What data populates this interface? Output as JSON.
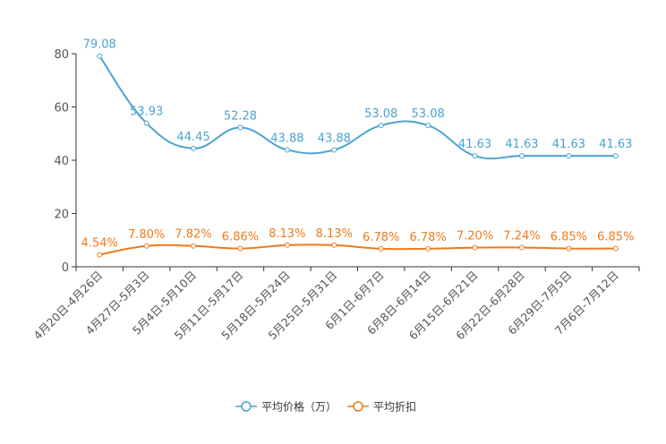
{
  "chart_data": {
    "type": "line",
    "categories": [
      "4月20日-4月26日",
      "4月27日-5月3日",
      "5月4日-5月10日",
      "5月11日-5月17日",
      "5月18日-5月24日",
      "5月25日-5月31日",
      "6月1日-6月7日",
      "6月8日-6月14日",
      "6月15日-6月21日",
      "6月22日-6月28日",
      "6月29日-7月5日",
      "7月6日-7月12日"
    ],
    "series": [
      {
        "name": "平均价格（万）",
        "color": "#4aa3d1",
        "values": [
          79.08,
          53.93,
          44.45,
          52.28,
          43.88,
          43.88,
          53.08,
          53.08,
          41.63,
          41.63,
          41.63,
          41.63
        ],
        "labels": [
          "79.08",
          "53.93",
          "44.45",
          "52.28",
          "43.88",
          "43.88",
          "53.08",
          "53.08",
          "41.63",
          "41.63",
          "41.63",
          "41.63"
        ]
      },
      {
        "name": "平均折扣",
        "color": "#f07a1a",
        "values": [
          4.54,
          7.8,
          7.82,
          6.86,
          8.13,
          8.13,
          6.78,
          6.78,
          7.2,
          7.24,
          6.85,
          6.85
        ],
        "labels": [
          "4.54%",
          "7.80%",
          "7.82%",
          "6.86%",
          "8.13%",
          "8.13%",
          "6.78%",
          "6.78%",
          "7.20%",
          "7.24%",
          "6.85%",
          "6.85%"
        ]
      }
    ],
    "yticks": [
      "0",
      "20",
      "40",
      "60",
      "80"
    ],
    "ylim": [
      0,
      80
    ],
    "title": "",
    "xlabel": "",
    "ylabel": "",
    "legend_position": "bottom-center",
    "grid": false,
    "smooth": true
  }
}
